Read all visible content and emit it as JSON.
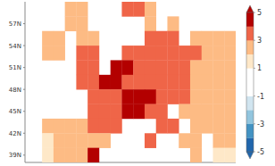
{
  "chart_data": {
    "type": "heatmap",
    "xlim": [
      -13,
      24
    ],
    "ylim": [
      38,
      60
    ],
    "yticks": [
      {
        "value": 39,
        "label": "39N"
      },
      {
        "value": 42,
        "label": "42N"
      },
      {
        "value": 45,
        "label": "45N"
      },
      {
        "value": 48,
        "label": "48N"
      },
      {
        "value": 51,
        "label": "51N"
      },
      {
        "value": 54,
        "label": "54N"
      },
      {
        "value": 57,
        "label": "57N"
      }
    ],
    "tick_labels": "y",
    "grid": false,
    "cell_size": 2,
    "cells": [
      [
        5,
        59,
        3.5
      ],
      [
        7,
        59,
        3
      ],
      [
        9,
        59,
        2.5
      ],
      [
        -5,
        59,
        2
      ],
      [
        -3,
        59,
        2
      ],
      [
        -5,
        57,
        2
      ],
      [
        -3,
        57,
        2.5
      ],
      [
        9,
        57,
        2.5
      ],
      [
        13,
        57,
        2
      ],
      [
        -9,
        55,
        2
      ],
      [
        -7,
        55,
        2
      ],
      [
        -3,
        55,
        2.5
      ],
      [
        -1,
        55,
        2
      ],
      [
        9,
        55,
        3
      ],
      [
        11,
        55,
        3
      ],
      [
        13,
        55,
        3
      ],
      [
        17,
        55,
        2.5
      ],
      [
        19,
        55,
        2.5
      ],
      [
        21,
        55,
        2.5
      ],
      [
        23,
        55,
        2.5
      ],
      [
        -9,
        53,
        2
      ],
      [
        -7,
        53,
        2.5
      ],
      [
        -3,
        53,
        3
      ],
      [
        -1,
        53,
        3
      ],
      [
        5,
        53,
        3.5
      ],
      [
        7,
        53,
        3.5
      ],
      [
        9,
        53,
        3.5
      ],
      [
        11,
        53,
        3
      ],
      [
        13,
        53,
        3
      ],
      [
        15,
        53,
        3
      ],
      [
        17,
        53,
        3
      ],
      [
        19,
        53,
        2.5
      ],
      [
        21,
        53,
        2.5
      ],
      [
        23,
        53,
        2.5
      ],
      [
        -3,
        51,
        3
      ],
      [
        -1,
        51,
        3.5
      ],
      [
        3,
        51,
        4
      ],
      [
        5,
        51,
        4
      ],
      [
        7,
        51,
        3.5
      ],
      [
        9,
        51,
        3.5
      ],
      [
        11,
        51,
        3.5
      ],
      [
        13,
        51,
        3
      ],
      [
        15,
        51,
        3
      ],
      [
        17,
        51,
        2.5
      ],
      [
        19,
        51,
        2.5
      ],
      [
        21,
        51,
        2.5
      ],
      [
        23,
        51,
        2.5
      ],
      [
        -3,
        49,
        3
      ],
      [
        -1,
        49,
        3.5
      ],
      [
        1,
        49,
        4
      ],
      [
        3,
        49,
        4
      ],
      [
        5,
        49,
        3.5
      ],
      [
        7,
        49,
        3.5
      ],
      [
        9,
        49,
        3.5
      ],
      [
        11,
        49,
        3
      ],
      [
        13,
        49,
        3
      ],
      [
        15,
        49,
        3
      ],
      [
        17,
        49,
        2.5
      ],
      [
        19,
        49,
        2.5
      ],
      [
        21,
        49,
        2.5
      ],
      [
        23,
        49,
        2.5
      ],
      [
        -1,
        47,
        3
      ],
      [
        1,
        47,
        3.5
      ],
      [
        3,
        47,
        3.5
      ],
      [
        5,
        47,
        4
      ],
      [
        7,
        47,
        4.5
      ],
      [
        9,
        47,
        4
      ],
      [
        11,
        47,
        3.5
      ],
      [
        13,
        47,
        3.5
      ],
      [
        15,
        47,
        3
      ],
      [
        17,
        47,
        2.5
      ],
      [
        19,
        47,
        2.5
      ],
      [
        21,
        47,
        2.5
      ],
      [
        23,
        47,
        2.5
      ],
      [
        -1,
        45,
        3
      ],
      [
        1,
        45,
        3
      ],
      [
        3,
        45,
        3.5
      ],
      [
        5,
        45,
        4
      ],
      [
        7,
        45,
        4
      ],
      [
        9,
        45,
        3.5
      ],
      [
        11,
        45,
        3.5
      ],
      [
        15,
        45,
        2.5
      ],
      [
        17,
        45,
        2.5
      ],
      [
        19,
        45,
        2.5
      ],
      [
        21,
        45,
        2.5
      ],
      [
        23,
        45,
        2
      ],
      [
        -9,
        43,
        2
      ],
      [
        -7,
        43,
        2
      ],
      [
        -5,
        43,
        2
      ],
      [
        -3,
        43,
        2.5
      ],
      [
        -1,
        43,
        3
      ],
      [
        1,
        43,
        3
      ],
      [
        3,
        43,
        3
      ],
      [
        11,
        43,
        3
      ],
      [
        13,
        43,
        3
      ],
      [
        17,
        43,
        2
      ],
      [
        19,
        43,
        2
      ],
      [
        21,
        43,
        2
      ],
      [
        23,
        43,
        2
      ],
      [
        -9,
        41,
        1.5
      ],
      [
        -7,
        41,
        2
      ],
      [
        -5,
        41,
        2
      ],
      [
        -3,
        41,
        2
      ],
      [
        -1,
        41,
        2.5
      ],
      [
        1,
        41,
        2.5
      ],
      [
        9,
        41,
        3
      ],
      [
        15,
        41,
        2.5
      ],
      [
        17,
        41,
        2.5
      ],
      [
        21,
        41,
        2
      ],
      [
        23,
        41,
        2
      ],
      [
        -9,
        39,
        1.5
      ],
      [
        -7,
        39,
        2
      ],
      [
        -5,
        39,
        2
      ],
      [
        -3,
        39,
        2
      ],
      [
        -1,
        39,
        4.5
      ],
      [
        17,
        39,
        2
      ],
      [
        21,
        39,
        1.5
      ],
      [
        23,
        39,
        1.5
      ]
    ],
    "colorbar": {
      "range": [
        -5,
        5
      ],
      "ticks": [
        -5,
        -3,
        -1,
        1,
        3,
        5
      ]
    }
  }
}
